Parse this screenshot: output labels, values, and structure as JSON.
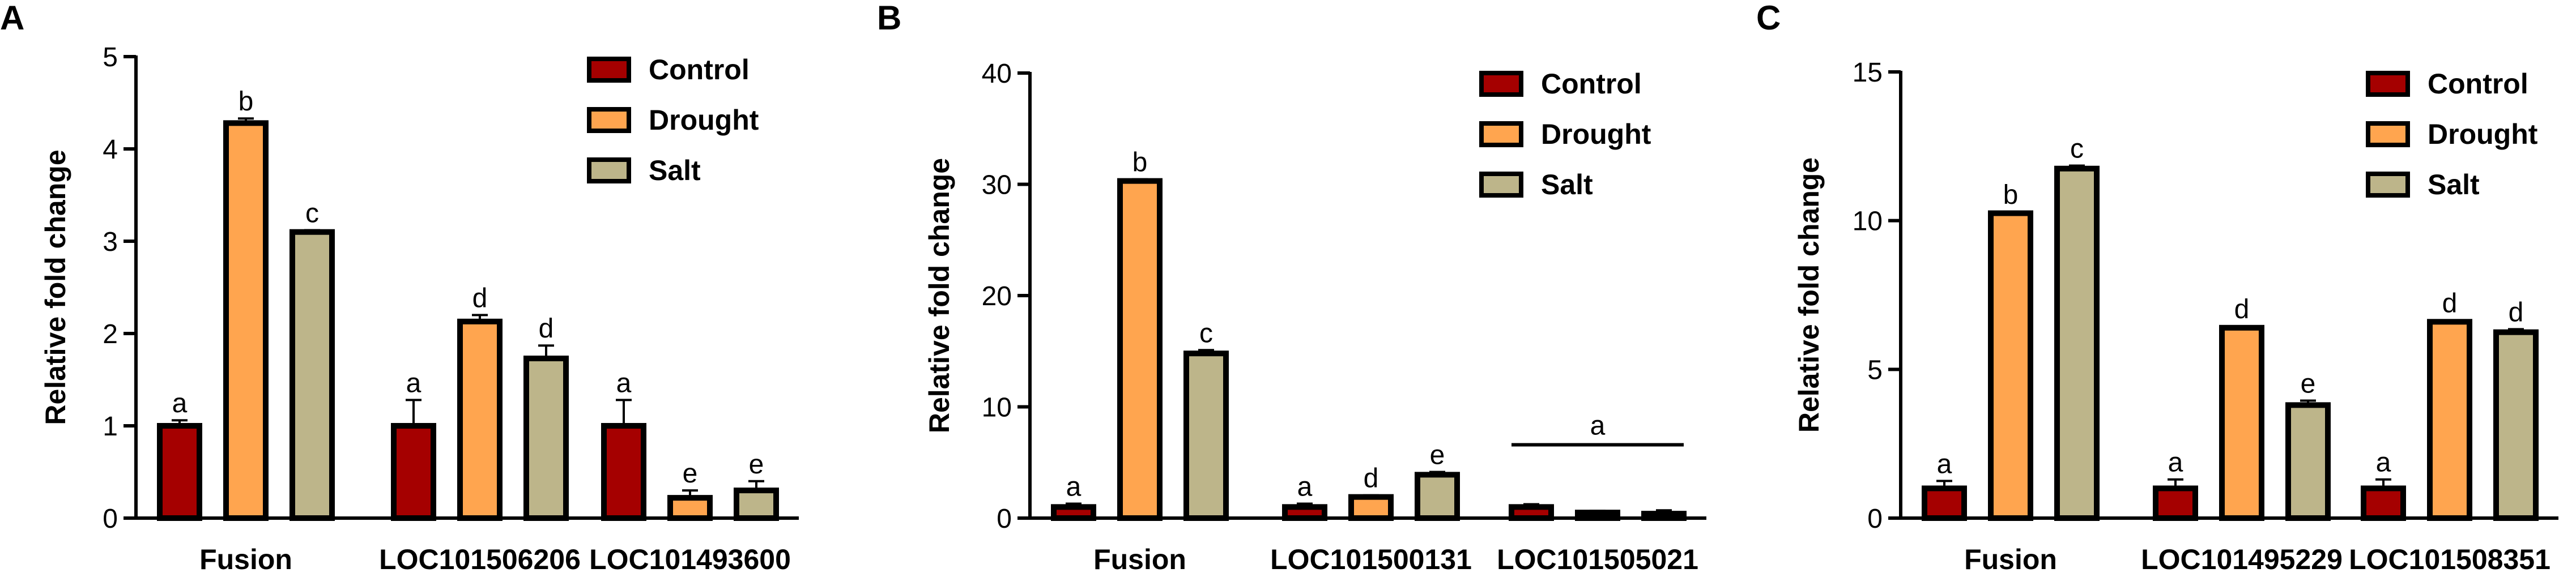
{
  "chart_data": [
    {
      "type": "bar",
      "panel_label": "A",
      "ylabel": "Relative fold change",
      "xlabel": "",
      "ylim": [
        0,
        5
      ],
      "yticks": [
        0,
        1,
        2,
        3,
        4,
        5
      ],
      "categories": [
        "Fusion",
        "LOC101506206",
        "LOC101493600"
      ],
      "series": [
        {
          "name": "Control",
          "color": "#A50000",
          "values": [
            1.0,
            1.0,
            1.0
          ],
          "errors": [
            0.06,
            0.28,
            0.28
          ],
          "letters": [
            "a",
            "a",
            "a"
          ]
        },
        {
          "name": "Drought",
          "color": "#FFA54F",
          "values": [
            4.28,
            2.13,
            0.22
          ],
          "errors": [
            0.05,
            0.07,
            0.08
          ],
          "letters": [
            "b",
            "d",
            "e"
          ]
        },
        {
          "name": "Salt",
          "color": "#BDB58A",
          "values": [
            3.1,
            1.73,
            0.3
          ],
          "errors": [
            0.02,
            0.14,
            0.1
          ],
          "letters": [
            "c",
            "d",
            "e"
          ]
        }
      ],
      "group_annotations": [],
      "legend_position": "top-right"
    },
    {
      "type": "bar",
      "panel_label": "B",
      "ylabel": "Relative fold change",
      "xlabel": "",
      "ylim": [
        0,
        40
      ],
      "yticks": [
        0,
        10,
        20,
        30,
        40
      ],
      "categories": [
        "Fusion",
        "LOC101500131",
        "LOC101505021"
      ],
      "series": [
        {
          "name": "Control",
          "color": "#A50000",
          "values": [
            1.0,
            1.0,
            1.0
          ],
          "errors": [
            0.3,
            0.3,
            0.25
          ],
          "letters": [
            "a",
            "a",
            ""
          ]
        },
        {
          "name": "Drought",
          "color": "#FFA54F",
          "values": [
            30.3,
            1.9,
            0.5
          ],
          "errors": [
            0.15,
            0.15,
            0.15
          ],
          "letters": [
            "b",
            "d",
            ""
          ]
        },
        {
          "name": "Salt",
          "color": "#BDB58A",
          "values": [
            14.8,
            3.9,
            0.4
          ],
          "errors": [
            0.3,
            0.25,
            0.3
          ],
          "letters": [
            "c",
            "e",
            ""
          ]
        }
      ],
      "group_annotations": [
        {
          "category": "LOC101505021",
          "letter": "a"
        }
      ],
      "legend_position": "top-right"
    },
    {
      "type": "bar",
      "panel_label": "C",
      "ylabel": "Relative fold change",
      "xlabel": "",
      "ylim": [
        0,
        15
      ],
      "yticks": [
        0,
        5,
        10,
        15
      ],
      "categories": [
        "Fusion",
        "LOC101495229",
        "LOC101508351"
      ],
      "series": [
        {
          "name": "Control",
          "color": "#A50000",
          "values": [
            1.0,
            1.0,
            1.0
          ],
          "errors": [
            0.25,
            0.3,
            0.3
          ],
          "letters": [
            "a",
            "a",
            "a"
          ]
        },
        {
          "name": "Drought",
          "color": "#FFA54F",
          "values": [
            10.25,
            6.4,
            6.6
          ],
          "errors": [
            0.05,
            0.05,
            0.05
          ],
          "letters": [
            "b",
            "d",
            "d"
          ]
        },
        {
          "name": "Salt",
          "color": "#BDB58A",
          "values": [
            11.75,
            3.8,
            6.25
          ],
          "errors": [
            0.1,
            0.15,
            0.1
          ],
          "letters": [
            "c",
            "e",
            "d"
          ]
        }
      ],
      "group_annotations": [],
      "legend_position": "top-right"
    }
  ]
}
